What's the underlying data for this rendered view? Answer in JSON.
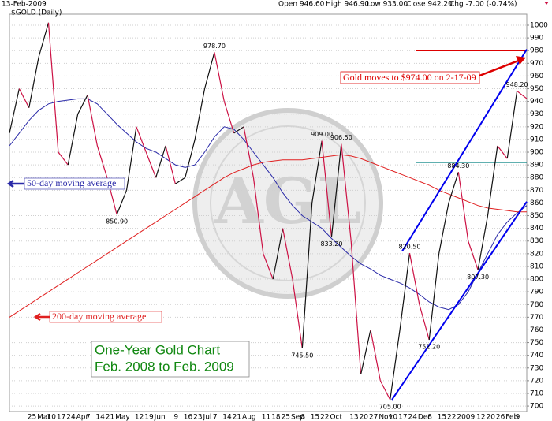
{
  "chart_data": {
    "type": "line",
    "header": {
      "date": "13-Feb-2009",
      "quote": [
        "Open 946.60",
        "High 946.90",
        "Low 933.00",
        "Close 942.20",
        "Chg -7.00 (-0.74%)"
      ]
    },
    "title": "One-Year Gold Chart",
    "subtitle": "Feb. 2008 to Feb. 2009",
    "title_color": "#118811",
    "watermark": "AGL",
    "categories": [
      null,
      null,
      "25",
      "Mar",
      "10",
      "17",
      "24",
      "Apr",
      "7",
      "14",
      "21",
      "May",
      null,
      "12",
      "19",
      "Jun",
      null,
      "9",
      "16",
      "23",
      "Jul",
      "7",
      "14",
      "21",
      "Aug",
      null,
      "11",
      "18",
      "25",
      "Sep",
      "8",
      "15",
      "22",
      "Oct",
      null,
      "13",
      "20",
      "27",
      "Nov",
      "10",
      "17",
      "24",
      "Dec",
      "8",
      "15",
      "22",
      "2009",
      null,
      "12",
      "20",
      "26",
      "Feb",
      "9",
      null
    ],
    "series": [
      {
        "name": "$GOLD (Daily)",
        "up_color": "#111111",
        "down_color": "#cc1144",
        "values": [
          915,
          950,
          935,
          975,
          1002,
          900,
          890,
          930,
          945,
          905,
          880,
          850.9,
          870,
          920,
          900,
          880,
          905,
          875,
          880,
          910,
          950,
          978.7,
          940,
          915,
          920,
          880,
          820,
          800,
          840,
          800,
          745.5,
          860,
          909,
          833.2,
          906.5,
          830,
          725,
          760,
          720,
          705,
          760,
          820.5,
          780,
          752.2,
          820,
          860,
          884.3,
          830,
          807.3,
          850,
          905,
          895,
          948.2,
          942.2
        ],
        "value_labels": [
          null,
          null,
          null,
          null,
          null,
          null,
          null,
          null,
          null,
          null,
          null,
          "850.90",
          null,
          null,
          null,
          null,
          null,
          null,
          null,
          null,
          null,
          "978.70",
          null,
          null,
          null,
          null,
          null,
          null,
          null,
          null,
          "745.50",
          null,
          "909.00",
          "833.20",
          "906.50",
          null,
          null,
          null,
          null,
          "705.00",
          null,
          "820.50",
          null,
          "752.20",
          null,
          null,
          "884.30",
          null,
          "807.30",
          null,
          null,
          null,
          "948.20",
          null
        ]
      },
      {
        "name": "50-day moving average",
        "color": "#2a2aa8",
        "values": [
          905,
          915,
          925,
          933,
          938,
          940,
          941,
          942,
          942,
          938,
          930,
          922,
          915,
          908,
          903,
          900,
          895,
          890,
          888,
          890,
          900,
          912,
          920,
          918,
          910,
          900,
          890,
          880,
          868,
          858,
          850,
          845,
          840,
          832,
          825,
          818,
          812,
          808,
          803,
          800,
          797,
          793,
          788,
          782,
          778,
          776,
          780,
          790,
          805,
          820,
          835,
          845,
          852,
          858
        ]
      },
      {
        "name": "200-day moving average",
        "color": "#e02020",
        "values": [
          770,
          775,
          780,
          785,
          790,
          795,
          800,
          805,
          810,
          815,
          820,
          825,
          830,
          835,
          840,
          845,
          850,
          855,
          860,
          865,
          870,
          875,
          880,
          884,
          887,
          890,
          892,
          893,
          894,
          894,
          894,
          895,
          896,
          897,
          898,
          897,
          895,
          892,
          889,
          886,
          883,
          880,
          877,
          874,
          870,
          867,
          864,
          861,
          858,
          856,
          855,
          854,
          853,
          853
        ]
      }
    ],
    "hlines": [
      {
        "value": 980,
        "color": "#dd0000"
      },
      {
        "value": 892,
        "color": "#008080"
      }
    ],
    "trendlines": [
      {
        "values": [
          705,
          861
        ],
        "color": "#0000ee"
      },
      {
        "values": [
          822,
          981
        ],
        "color": "#0000ee"
      }
    ],
    "annotation": {
      "text": "Gold moves to $974.00 on 2-17-09",
      "color": "#dd0000"
    },
    "ylim": [
      695.7,
      1008.7
    ],
    "yticks": [
      700,
      710,
      720,
      730,
      740,
      750,
      760,
      770,
      780,
      790,
      800,
      810,
      820,
      830,
      840,
      850,
      860,
      870,
      880,
      890,
      900,
      910,
      920,
      930,
      940,
      950,
      960,
      970,
      980,
      990,
      1000
    ],
    "grid": true
  }
}
